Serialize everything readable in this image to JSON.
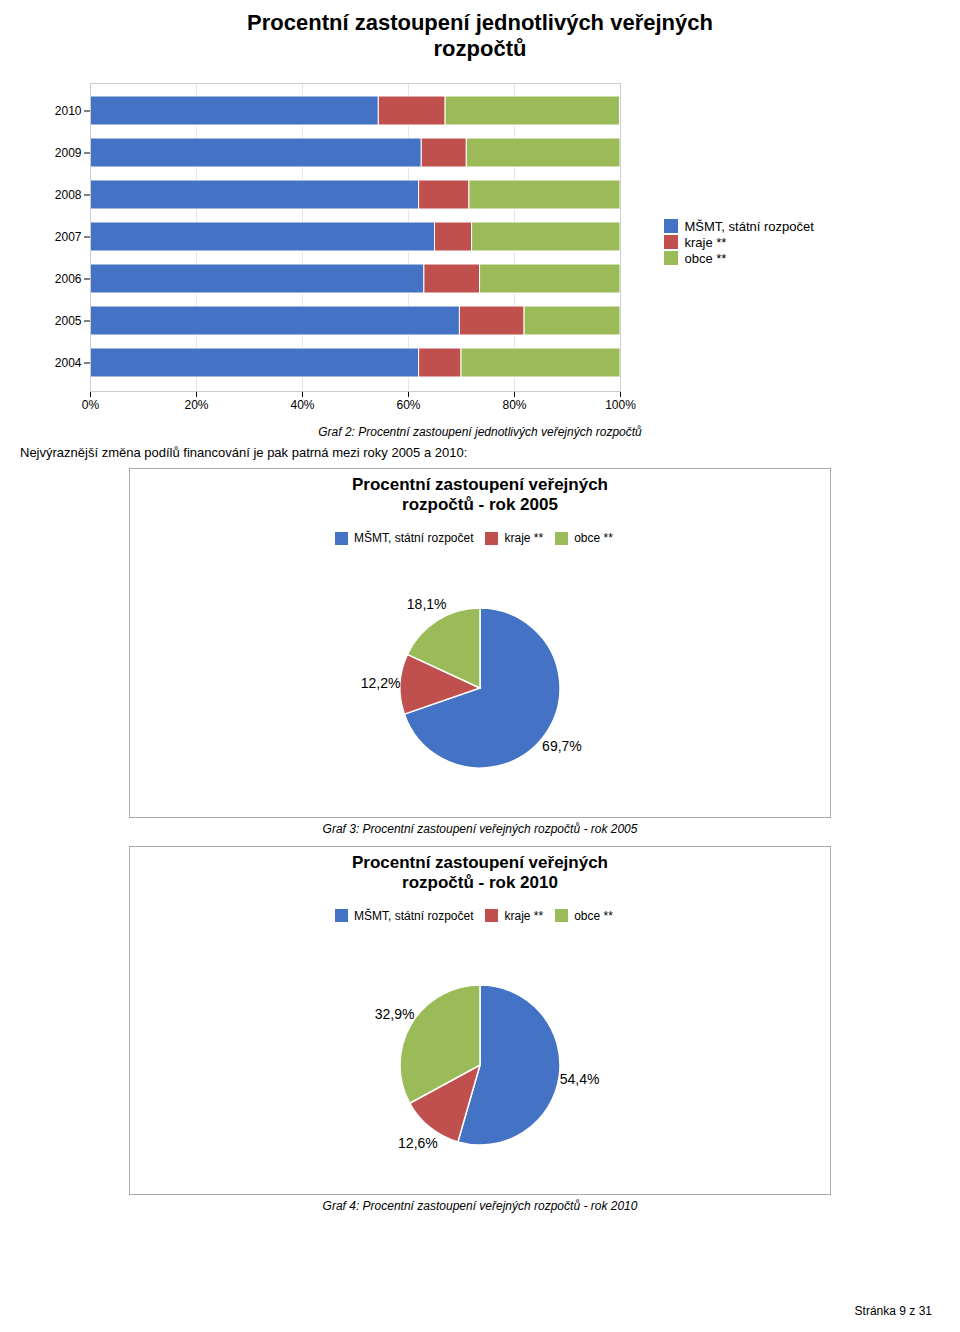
{
  "chart_data": [
    {
      "type": "bar",
      "title": "Procentní zastoupení jednotlivých veřejných\nrozpočtů",
      "orientation": "horizontal",
      "stacked": true,
      "categories": [
        "2004",
        "2005",
        "2006",
        "2007",
        "2008",
        "2009",
        "2010"
      ],
      "series": [
        {
          "name": "MŠMT, státní rozpočet",
          "color": "#4472C4",
          "values": [
            62.0,
            69.7,
            63.0,
            65.0,
            62.0,
            62.5,
            54.4
          ]
        },
        {
          "name": "kraje **",
          "color": "#C0504D",
          "values": [
            8.0,
            12.2,
            10.5,
            7.0,
            9.5,
            8.5,
            12.6
          ]
        },
        {
          "name": "obce **",
          "color": "#9BBB59",
          "values": [
            30.0,
            18.1,
            26.5,
            28.0,
            28.5,
            29.0,
            32.9
          ]
        }
      ],
      "xlim": [
        0,
        100
      ],
      "xticks": [
        {
          "value": 0,
          "label": "0%"
        },
        {
          "value": 20,
          "label": "20%"
        },
        {
          "value": 40,
          "label": "40%"
        },
        {
          "value": 60,
          "label": "60%"
        },
        {
          "value": 80,
          "label": "80%"
        },
        {
          "value": 100,
          "label": "100%"
        }
      ],
      "grid": true,
      "legend": "right",
      "caption": "Graf 2: Procentní zastoupení jednotlivých veřejných rozpočtů",
      "annotations": [
        "Nejvýraznější změna podílů financování je pak patrná mezi roky 2005 a 2010:"
      ]
    },
    {
      "type": "pie",
      "title": "Procentní zastoupení veřejných\nrozpočtů - rok 2005",
      "categories": [
        "MŠMT, státní rozpočet",
        "kraje **",
        "obce **"
      ],
      "values": [
        69.7,
        12.2,
        18.1
      ],
      "value_labels": [
        "69,7%",
        "12,2%",
        "18,1%"
      ],
      "colors": [
        "#4472C4",
        "#C0504D",
        "#9BBB59"
      ],
      "data_labels": true,
      "legend": "top",
      "caption": "Graf 3: Procentní zastoupení veřejných rozpočtů - rok 2005"
    },
    {
      "type": "pie",
      "title": "Procentní zastoupení veřejných\nrozpočtů - rok 2010",
      "categories": [
        "MŠMT, státní rozpočet",
        "kraje **",
        "obce **"
      ],
      "values": [
        54.4,
        12.6,
        32.9
      ],
      "value_labels": [
        "54,4%",
        "12,6%",
        "32,9%"
      ],
      "colors": [
        "#4472C4",
        "#C0504D",
        "#9BBB59"
      ],
      "data_labels": true,
      "legend": "top",
      "caption": "Graf 4: Procentní zastoupení veřejných rozpočtů - rok 2010",
      "annotations": [
        "Stránka 9 z 31"
      ]
    }
  ]
}
